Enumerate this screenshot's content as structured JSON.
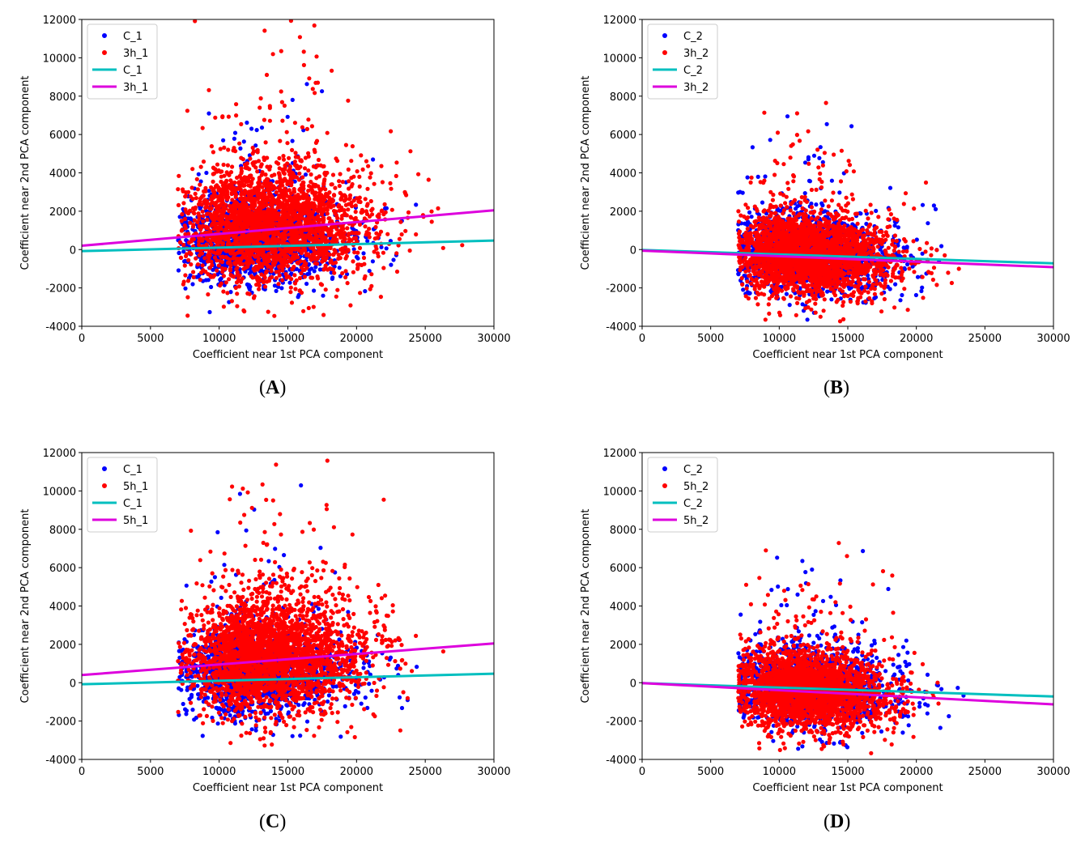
{
  "chart_data": [
    {
      "id": "A",
      "type": "scatter",
      "panel_label": "A",
      "xlabel": "Coefficient near 1st PCA component",
      "ylabel": "Coefficient near 2nd PCA component",
      "xlim": [
        0,
        30000
      ],
      "ylim": [
        -4000,
        12000
      ],
      "xticks": [
        0,
        5000,
        10000,
        15000,
        20000,
        25000,
        30000
      ],
      "yticks": [
        -4000,
        -2000,
        0,
        2000,
        4000,
        6000,
        8000,
        10000,
        12000
      ],
      "legend_position": "top-left",
      "series": [
        {
          "name": "C_1",
          "kind": "scatter",
          "color": "#0000ff",
          "cloud": {
            "x_center": 11500,
            "y_center": 500,
            "x_min": 7000,
            "x_max": 30000,
            "sx": 3800,
            "sy": 1100,
            "y_slope": 0.0,
            "n": 1500
          }
        },
        {
          "name": "3h_1",
          "kind": "scatter",
          "color": "#ff0000",
          "cloud": {
            "x_center": 12500,
            "y_center": 1300,
            "x_min": 7000,
            "x_max": 30000,
            "sx": 4200,
            "sy": 1500,
            "y_slope": 0.0,
            "n": 2600
          }
        },
        {
          "name": "C_1",
          "kind": "line",
          "color": "#00bfbf",
          "x": [
            0,
            30000
          ],
          "y": [
            -80,
            470
          ]
        },
        {
          "name": "3h_1",
          "kind": "line",
          "color": "#dd00dd",
          "x": [
            0,
            30000
          ],
          "y": [
            200,
            2050
          ]
        }
      ]
    },
    {
      "id": "B",
      "type": "scatter",
      "panel_label": "B",
      "xlabel": "Coefficient near 1st PCA component",
      "ylabel": "Coefficient near 2nd PCA component",
      "xlim": [
        0,
        30000
      ],
      "ylim": [
        -4000,
        12000
      ],
      "xticks": [
        0,
        5000,
        10000,
        15000,
        20000,
        25000,
        30000
      ],
      "yticks": [
        -4000,
        -2000,
        0,
        2000,
        4000,
        6000,
        8000,
        10000,
        12000
      ],
      "legend_position": "top-left",
      "series": [
        {
          "name": "C_2",
          "kind": "scatter",
          "color": "#0000ff",
          "cloud": {
            "x_center": 11000,
            "y_center": -200,
            "x_min": 7000,
            "x_max": 29000,
            "sx": 3800,
            "sy": 1000,
            "y_slope": -0.04,
            "n": 1500
          }
        },
        {
          "name": "3h_2",
          "kind": "scatter",
          "color": "#ff0000",
          "cloud": {
            "x_center": 11000,
            "y_center": -250,
            "x_min": 7000,
            "x_max": 29000,
            "sx": 3500,
            "sy": 1000,
            "y_slope": -0.04,
            "n": 2600
          }
        },
        {
          "name": "C_2",
          "kind": "line",
          "color": "#00bfbf",
          "x": [
            0,
            30000
          ],
          "y": [
            -20,
            -720
          ]
        },
        {
          "name": "3h_2",
          "kind": "line",
          "color": "#dd00dd",
          "x": [
            0,
            30000
          ],
          "y": [
            -60,
            -920
          ]
        }
      ]
    },
    {
      "id": "C",
      "type": "scatter",
      "panel_label": "C",
      "xlabel": "Coefficient near 1st PCA component",
      "ylabel": "Coefficient near 2nd PCA component",
      "xlim": [
        0,
        30000
      ],
      "ylim": [
        -4000,
        12000
      ],
      "xticks": [
        0,
        5000,
        10000,
        15000,
        20000,
        25000,
        30000
      ],
      "yticks": [
        -4000,
        -2000,
        0,
        2000,
        4000,
        6000,
        8000,
        10000,
        12000
      ],
      "legend_position": "top-left",
      "series": [
        {
          "name": "C_1",
          "kind": "scatter",
          "color": "#0000ff",
          "cloud": {
            "x_center": 11500,
            "y_center": 500,
            "x_min": 7000,
            "x_max": 30000,
            "sx": 3800,
            "sy": 1100,
            "y_slope": 0.0,
            "n": 1500
          }
        },
        {
          "name": "5h_1",
          "kind": "scatter",
          "color": "#ff0000",
          "cloud": {
            "x_center": 12500,
            "y_center": 1400,
            "x_min": 7000,
            "x_max": 30000,
            "sx": 4000,
            "sy": 1500,
            "y_slope": 0.0,
            "n": 2800
          }
        },
        {
          "name": "C_1",
          "kind": "line",
          "color": "#00bfbf",
          "x": [
            0,
            30000
          ],
          "y": [
            -80,
            470
          ]
        },
        {
          "name": "5h_1",
          "kind": "line",
          "color": "#dd00dd",
          "x": [
            0,
            30000
          ],
          "y": [
            400,
            2050
          ]
        }
      ]
    },
    {
      "id": "D",
      "type": "scatter",
      "panel_label": "D",
      "xlabel": "Coefficient near 1st PCA component",
      "ylabel": "Coefficient near 2nd PCA component",
      "xlim": [
        0,
        30000
      ],
      "ylim": [
        -4000,
        12000
      ],
      "xticks": [
        0,
        5000,
        10000,
        15000,
        20000,
        25000,
        30000
      ],
      "yticks": [
        -4000,
        -2000,
        0,
        2000,
        4000,
        6000,
        8000,
        10000,
        12000
      ],
      "legend_position": "top-left",
      "series": [
        {
          "name": "C_2",
          "kind": "scatter",
          "color": "#0000ff",
          "cloud": {
            "x_center": 11000,
            "y_center": -200,
            "x_min": 7000,
            "x_max": 29000,
            "sx": 3800,
            "sy": 1000,
            "y_slope": -0.04,
            "n": 1500
          }
        },
        {
          "name": "5h_2",
          "kind": "scatter",
          "color": "#ff0000",
          "cloud": {
            "x_center": 11000,
            "y_center": -350,
            "x_min": 7000,
            "x_max": 29000,
            "sx": 3500,
            "sy": 1000,
            "y_slope": -0.05,
            "n": 2600
          }
        },
        {
          "name": "C_2",
          "kind": "line",
          "color": "#00bfbf",
          "x": [
            0,
            30000
          ],
          "y": [
            -20,
            -720
          ]
        },
        {
          "name": "5h_2",
          "kind": "line",
          "color": "#dd00dd",
          "x": [
            0,
            30000
          ],
          "y": [
            -20,
            -1130
          ]
        }
      ]
    }
  ]
}
